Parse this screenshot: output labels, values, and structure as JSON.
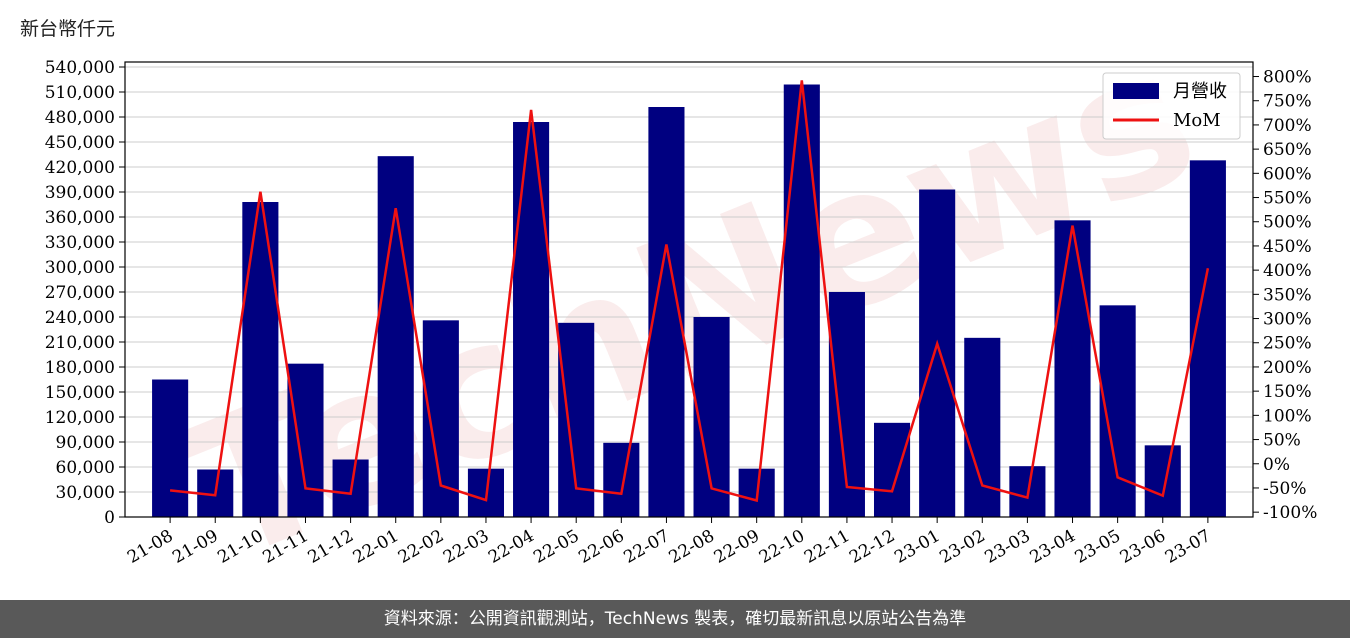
{
  "unit_label": "新台幣仟元",
  "footer": "資料來源：公開資訊觀測站，TechNews 製表，確切最新訊息以原站公告為準",
  "watermark": "TechNews",
  "colors": {
    "bar": "#000080",
    "line": "#ee1111",
    "grid": "#cccccc",
    "footer_bg": "#595959"
  },
  "chart_data": {
    "type": "bar",
    "categories": [
      "21-08",
      "21-09",
      "21-10",
      "21-11",
      "21-12",
      "22-01",
      "22-02",
      "22-03",
      "22-04",
      "22-05",
      "22-06",
      "22-07",
      "22-08",
      "22-09",
      "22-10",
      "22-11",
      "22-12",
      "23-01",
      "23-02",
      "23-03",
      "23-04",
      "23-05",
      "23-06",
      "23-07"
    ],
    "series": [
      {
        "name": "月營收",
        "axis": "left",
        "type": "bar",
        "values": [
          165000,
          57000,
          378000,
          184000,
          69000,
          433000,
          236000,
          58000,
          474000,
          233000,
          89000,
          492000,
          240000,
          58000,
          519000,
          270000,
          113000,
          393000,
          215000,
          61000,
          356000,
          254000,
          86000,
          428000
        ]
      },
      {
        "name": "MoM",
        "axis": "right",
        "type": "line",
        "values": [
          -55,
          -65,
          562,
          -51,
          -62,
          528,
          -45,
          -75,
          731,
          -51,
          -62,
          453,
          -51,
          -76,
          792,
          -48,
          -57,
          248,
          -45,
          -70,
          492,
          -28,
          -66,
          404
        ]
      }
    ],
    "y_left": {
      "ylim": [
        0,
        546000
      ],
      "ticks": [
        0,
        30000,
        60000,
        90000,
        120000,
        150000,
        180000,
        210000,
        240000,
        270000,
        300000,
        330000,
        360000,
        390000,
        420000,
        450000,
        480000,
        510000,
        540000
      ],
      "tick_labels": [
        "0",
        "30,000",
        "60,000",
        "90,000",
        "120,000",
        "150,000",
        "180,000",
        "210,000",
        "240,000",
        "270,000",
        "300,000",
        "330,000",
        "360,000",
        "390,000",
        "420,000",
        "450,000",
        "480,000",
        "510,000",
        "540,000"
      ]
    },
    "y_right": {
      "ylim": [
        -110,
        830
      ],
      "ticks": [
        -100,
        -50,
        0,
        50,
        100,
        150,
        200,
        250,
        300,
        350,
        400,
        450,
        500,
        550,
        600,
        650,
        700,
        750,
        800
      ],
      "tick_labels": [
        "-100%",
        "-50%",
        "0%",
        "50%",
        "100%",
        "150%",
        "200%",
        "250%",
        "300%",
        "350%",
        "400%",
        "450%",
        "500%",
        "550%",
        "600%",
        "650%",
        "700%",
        "750%",
        "800%"
      ]
    },
    "grid": true,
    "legend_position": "top-right"
  }
}
